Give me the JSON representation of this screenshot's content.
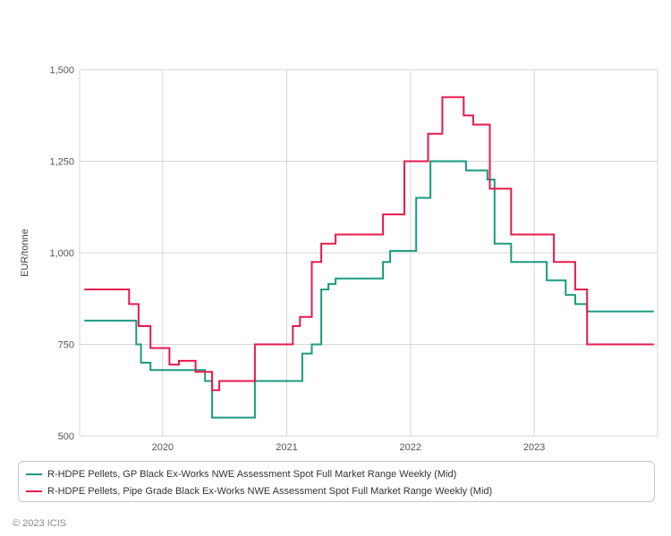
{
  "chart_data": {
    "type": "line",
    "step": true,
    "xlabel": "",
    "ylabel": "EUR/tonne",
    "ylim": [
      500,
      1500
    ],
    "yticks": [
      500,
      750,
      1000,
      1250,
      1500
    ],
    "ytick_labels": [
      "500",
      "750",
      "1,000",
      "1,250",
      "1,500"
    ],
    "xlim": [
      "2019-05-01",
      "2023-12-31"
    ],
    "xticks": [
      "2020-01-01",
      "2021-01-01",
      "2022-01-01",
      "2023-01-01"
    ],
    "xtick_labels": [
      "2020",
      "2021",
      "2022",
      "2023"
    ],
    "grid": true,
    "legend_position": "bottom",
    "series": [
      {
        "name": "R-HDPE Pellets, GP Black Ex-Works NWE Assessment Spot Full Market Range Weekly (Mid)",
        "color": "#1a9a80",
        "points": [
          [
            "2019-05-15",
            815
          ],
          [
            "2019-10-15",
            750
          ],
          [
            "2019-10-29",
            700
          ],
          [
            "2019-11-26",
            680
          ],
          [
            "2020-05-05",
            650
          ],
          [
            "2020-05-26",
            550
          ],
          [
            "2020-09-29",
            650
          ],
          [
            "2021-02-16",
            725
          ],
          [
            "2021-03-16",
            750
          ],
          [
            "2021-04-13",
            900
          ],
          [
            "2021-05-04",
            915
          ],
          [
            "2021-05-25",
            930
          ],
          [
            "2021-10-12",
            975
          ],
          [
            "2021-11-02",
            1005
          ],
          [
            "2021-12-07",
            1005
          ],
          [
            "2022-01-18",
            1150
          ],
          [
            "2022-03-01",
            1250
          ],
          [
            "2022-06-14",
            1225
          ],
          [
            "2022-08-16",
            1200
          ],
          [
            "2022-09-06",
            1025
          ],
          [
            "2022-10-25",
            975
          ],
          [
            "2023-02-07",
            925
          ],
          [
            "2023-04-04",
            885
          ],
          [
            "2023-05-02",
            860
          ],
          [
            "2023-06-06",
            840
          ],
          [
            "2023-12-20",
            840
          ]
        ]
      },
      {
        "name": "R-HDPE Pellets, Pipe Grade Black Ex-Works NWE Assessment Spot Full Market Range Weekly (Mid)",
        "color": "#e8194e",
        "points": [
          [
            "2019-05-15",
            900
          ],
          [
            "2019-09-24",
            860
          ],
          [
            "2019-10-22",
            800
          ],
          [
            "2019-11-26",
            740
          ],
          [
            "2020-01-21",
            695
          ],
          [
            "2020-02-18",
            705
          ],
          [
            "2020-04-07",
            675
          ],
          [
            "2020-05-26",
            625
          ],
          [
            "2020-06-16",
            650
          ],
          [
            "2020-09-29",
            750
          ],
          [
            "2021-01-19",
            800
          ],
          [
            "2021-02-09",
            825
          ],
          [
            "2021-03-16",
            975
          ],
          [
            "2021-04-13",
            1025
          ],
          [
            "2021-05-25",
            1050
          ],
          [
            "2021-10-12",
            1105
          ],
          [
            "2021-12-14",
            1250
          ],
          [
            "2022-02-22",
            1325
          ],
          [
            "2022-04-05",
            1425
          ],
          [
            "2022-06-07",
            1375
          ],
          [
            "2022-07-05",
            1350
          ],
          [
            "2022-08-23",
            1175
          ],
          [
            "2022-10-25",
            1050
          ],
          [
            "2023-02-28",
            975
          ],
          [
            "2023-05-02",
            900
          ],
          [
            "2023-06-06",
            750
          ],
          [
            "2023-12-20",
            750
          ]
        ]
      }
    ]
  },
  "footer": {
    "copyright": "© 2023 ICIS"
  }
}
